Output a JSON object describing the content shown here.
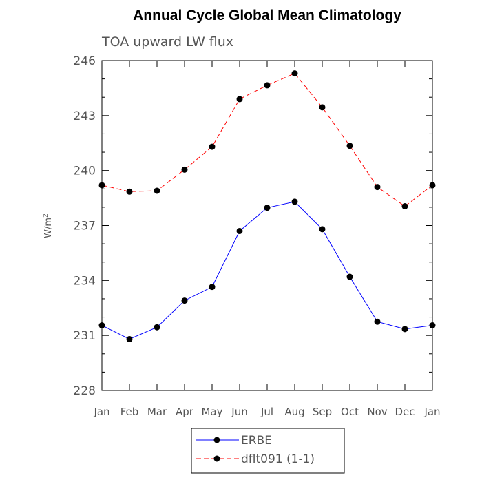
{
  "chart_data": {
    "type": "line",
    "title": "Annual Cycle Global Mean Climatology",
    "subtitle": "TOA upward LW flux",
    "ylabel": "W/m",
    "ylabel_sup": "2",
    "xlabel": "",
    "categories": [
      "Jan",
      "Feb",
      "Mar",
      "Apr",
      "May",
      "Jun",
      "Jul",
      "Aug",
      "Sep",
      "Oct",
      "Nov",
      "Dec",
      "Jan"
    ],
    "ylim": [
      228,
      246
    ],
    "yticks": [
      228,
      231,
      234,
      237,
      240,
      243,
      246
    ],
    "grid": false,
    "legend_position": "bottom",
    "series": [
      {
        "name": "ERBE",
        "color": "#0000ff",
        "dash": "solid",
        "values": [
          231.55,
          230.8,
          231.45,
          232.9,
          233.65,
          236.7,
          237.97,
          238.3,
          236.8,
          234.2,
          231.75,
          231.35,
          231.55
        ]
      },
      {
        "name": "dflt091 (1-1)",
        "color": "#ff0000",
        "dash": "dashed",
        "values": [
          239.2,
          238.85,
          238.9,
          240.05,
          241.3,
          243.9,
          244.65,
          245.3,
          243.45,
          241.35,
          239.1,
          238.05,
          239.2
        ]
      }
    ]
  }
}
